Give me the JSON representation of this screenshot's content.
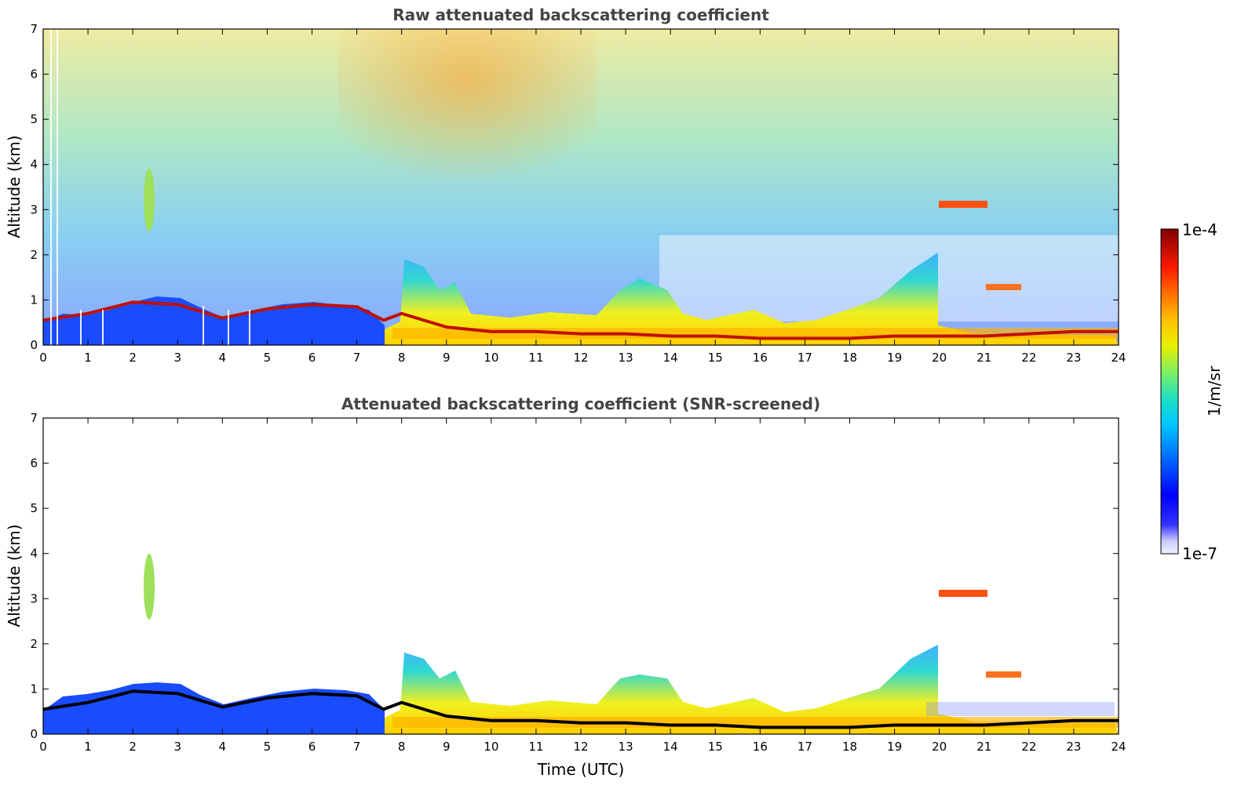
{
  "chart_data": [
    {
      "type": "heatmap",
      "title": "Raw attenuated backscattering coefficient",
      "xlabel": "",
      "ylabel": "Altitude (km)",
      "xlim": [
        0,
        24
      ],
      "ylim": [
        0,
        7
      ],
      "xticks": [
        "0",
        "1",
        "2",
        "3",
        "4",
        "5",
        "6",
        "7",
        "8",
        "9",
        "10",
        "11",
        "12",
        "13",
        "14",
        "15",
        "16",
        "17",
        "18",
        "19",
        "20",
        "21",
        "22",
        "23",
        "24"
      ],
      "yticks": [
        "0",
        "1",
        "2",
        "3",
        "4",
        "5",
        "6",
        "7"
      ],
      "boundary_layer_top_km": [
        {
          "x": 0,
          "y": 0.55
        },
        {
          "x": 1,
          "y": 0.7
        },
        {
          "x": 2,
          "y": 0.95
        },
        {
          "x": 3,
          "y": 0.9
        },
        {
          "x": 4,
          "y": 0.6
        },
        {
          "x": 5,
          "y": 0.8
        },
        {
          "x": 6,
          "y": 0.9
        },
        {
          "x": 7,
          "y": 0.85
        },
        {
          "x": 7.6,
          "y": 0.55
        },
        {
          "x": 8,
          "y": 0.7
        },
        {
          "x": 9,
          "y": 0.4
        },
        {
          "x": 10,
          "y": 0.3
        },
        {
          "x": 11,
          "y": 0.3
        },
        {
          "x": 12,
          "y": 0.25
        },
        {
          "x": 13,
          "y": 0.25
        },
        {
          "x": 14,
          "y": 0.2
        },
        {
          "x": 15,
          "y": 0.2
        },
        {
          "x": 16,
          "y": 0.15
        },
        {
          "x": 17,
          "y": 0.15
        },
        {
          "x": 18,
          "y": 0.15
        },
        {
          "x": 19,
          "y": 0.2
        },
        {
          "x": 20,
          "y": 0.2
        },
        {
          "x": 21,
          "y": 0.2
        },
        {
          "x": 22,
          "y": 0.25
        },
        {
          "x": 23,
          "y": 0.3
        },
        {
          "x": 24,
          "y": 0.3
        }
      ],
      "features": [
        {
          "label": "aerosol layer",
          "x_range": [
            2.2,
            2.5
          ],
          "alt_range_km": [
            2.6,
            4.1
          ]
        },
        {
          "label": "elevated layer",
          "x_range": [
            20.0,
            21.0
          ],
          "alt_range_km": [
            3.0,
            3.2
          ]
        },
        {
          "label": "elevated layer",
          "x_range": [
            21.1,
            21.8
          ],
          "alt_range_km": [
            1.1,
            1.4
          ]
        }
      ]
    },
    {
      "type": "heatmap",
      "title": "Attenuated backscattering coefficient (SNR-screened)",
      "xlabel": "Time (UTC)",
      "ylabel": "Altitude (km)",
      "xlim": [
        0,
        24
      ],
      "ylim": [
        0,
        7
      ],
      "xticks": [
        "0",
        "1",
        "2",
        "3",
        "4",
        "5",
        "6",
        "7",
        "8",
        "9",
        "10",
        "11",
        "12",
        "13",
        "14",
        "15",
        "16",
        "17",
        "18",
        "19",
        "20",
        "21",
        "22",
        "23",
        "24"
      ],
      "yticks": [
        "0",
        "1",
        "2",
        "3",
        "4",
        "5",
        "6",
        "7"
      ]
    }
  ],
  "colorbar": {
    "min_label": "1e-7",
    "max_label": "1e-4",
    "label": "1/m/sr",
    "scale": "log"
  }
}
